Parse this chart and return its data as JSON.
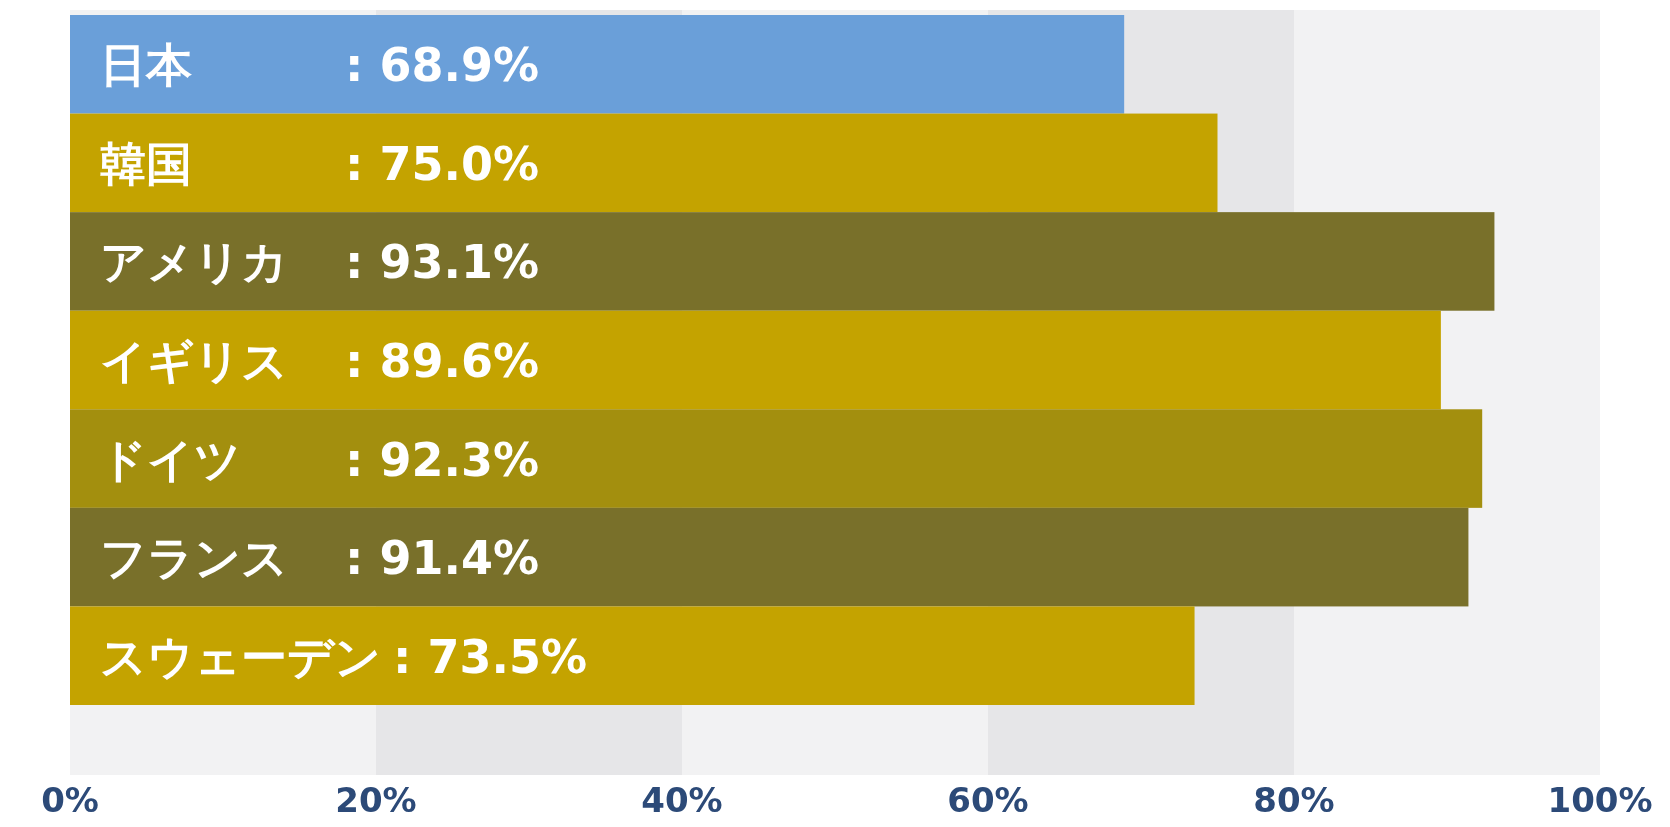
{
  "chart_data": {
    "type": "bar",
    "orientation": "horizontal",
    "categories": [
      "日本",
      "韓国",
      "アメリカ",
      "イギリス",
      "ドイツ",
      "フランス",
      "スウェーデン"
    ],
    "values": [
      68.9,
      75.0,
      93.1,
      89.6,
      92.3,
      91.4,
      73.5
    ],
    "value_labels": [
      ": 68.9%",
      ": 75.0%",
      ": 93.1%",
      ": 89.6%",
      ": 92.3%",
      ": 91.4%",
      ": 73.5%"
    ],
    "colors": [
      "#6a9fd9",
      "#c4a300",
      "#79702a",
      "#c4a300",
      "#a38f0e",
      "#79702a",
      "#c4a300"
    ],
    "xlim": [
      0,
      100
    ],
    "xticks": [
      {
        "value": 0,
        "label": "0%"
      },
      {
        "value": 20,
        "label": "20%"
      },
      {
        "value": 40,
        "label": "40%"
      },
      {
        "value": 60,
        "label": "60%"
      },
      {
        "value": 80,
        "label": "80%"
      },
      {
        "value": 100,
        "label": "100%"
      }
    ],
    "bands": [
      {
        "axis": "x",
        "from": 20,
        "to": 40,
        "color": "#e6e6e8"
      },
      {
        "axis": "x",
        "from": 60,
        "to": 80,
        "color": "#e6e6e8"
      }
    ]
  }
}
